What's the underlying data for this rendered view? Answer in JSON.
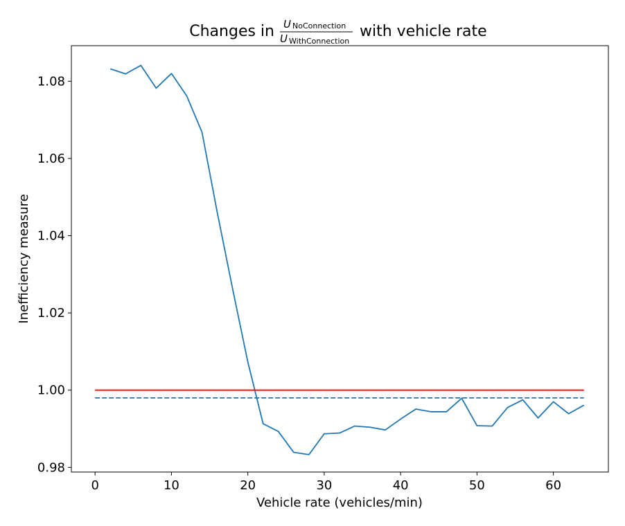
{
  "chart_data": {
    "type": "line",
    "title": {
      "prefix": "Changes in",
      "numerator_var": "U",
      "numerator_sub": "NoConnection",
      "denominator_var": "U",
      "denominator_sub": "WithConnection",
      "suffix": "with vehicle rate"
    },
    "xlabel": "Vehicle rate (vehicles/min)",
    "ylabel": "Inefficiency measure",
    "xlim": [
      -3.1,
      67.2
    ],
    "ylim": [
      0.9788,
      1.0892
    ],
    "xticks": [
      0,
      10,
      20,
      30,
      40,
      50,
      60
    ],
    "yticks": [
      0.98,
      1.0,
      1.02,
      1.04,
      1.06,
      1.08
    ],
    "ytick_labels": [
      "0.98",
      "1.00",
      "1.02",
      "1.04",
      "1.06",
      "1.08"
    ],
    "grid": false,
    "legend": "none",
    "series": [
      {
        "style": "solid",
        "color": "#1f77b4",
        "x": [
          2,
          4,
          6,
          8,
          10,
          12,
          14,
          16,
          18,
          20,
          22,
          24,
          26,
          28,
          30,
          32,
          34,
          36,
          38,
          40,
          42,
          44,
          46,
          48,
          50,
          52,
          54,
          56,
          58,
          60,
          62,
          64
        ],
        "y": [
          1.0832,
          1.0819,
          1.0841,
          1.0782,
          1.082,
          1.0762,
          1.0668,
          1.046,
          1.0263,
          1.0073,
          0.9913,
          0.9893,
          0.9839,
          0.9833,
          0.9887,
          0.9889,
          0.9907,
          0.9904,
          0.9897,
          0.9925,
          0.9951,
          0.9944,
          0.9944,
          0.9979,
          0.9908,
          0.9907,
          0.9955,
          0.9975,
          0.9928,
          0.997,
          0.9939,
          0.9961
        ]
      },
      {
        "style": "dashed",
        "color": "#1f77b4",
        "x": [
          0,
          64
        ],
        "y": [
          0.998,
          0.998
        ]
      },
      {
        "style": "solid",
        "color": "#ff0000",
        "x": [
          0,
          64
        ],
        "y": [
          1.0,
          1.0
        ]
      }
    ]
  }
}
